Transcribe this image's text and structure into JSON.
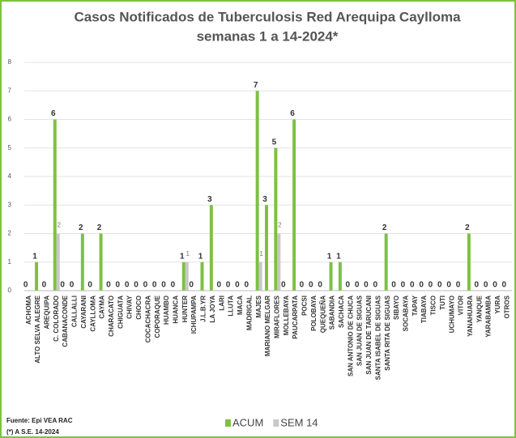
{
  "chart_data": {
    "type": "bar",
    "title": "Casos Notificados de Tuberculosis Red Arequipa Caylloma",
    "subtitle": "semanas 1 a 14-2024*",
    "categories": [
      "ACHOMA",
      "ALTO SELVA ALEGRE",
      "AREQUIPA",
      "C. COLORADO",
      "CABANACONDE",
      "CALLALLI",
      "CAYARANI",
      "CAYLLOMA",
      "CAYMA",
      "CHARACATO",
      "CHIGUATA",
      "CHIVAY",
      "CHOCO",
      "COCACHACRA",
      "COPORAQUE",
      "HUAMBO",
      "HUANCA",
      "HUNTER",
      "ICHUPAMPA",
      "J.L.B.YR",
      "LA JOYA",
      "LARI",
      "LLUTA",
      "MACA",
      "MADRIGAL",
      "MAJES",
      "MARIANO MELGAR",
      "MIRAFLORES",
      "MOLLEBAYA",
      "PAUCARPATA",
      "POCSI",
      "POLOBAYA",
      "QUEQUEÑA",
      "SABANDIA",
      "SACHACA",
      "SAN ANTONIO DE CHUCA",
      "SAN JUAN DE SIGUAS",
      "SAN JUAN DE TARUCANI",
      "SANTA ISABEL DE SIGUAS",
      "SANTA RITA DE SIGUAS",
      "SIBAYO",
      "SOCABAYA",
      "TAPAY",
      "TIABAYA",
      "TISCO",
      "TUTI",
      "UCHUMAYO",
      "VITOR",
      "YANAHUARA",
      "YANQUE",
      "YARABAMBA",
      "YURA",
      "OTROS"
    ],
    "series": [
      {
        "name": "ACUM",
        "color": "#7dc142",
        "values": [
          0,
          1,
          0,
          6,
          0,
          0,
          2,
          0,
          2,
          0,
          0,
          0,
          0,
          0,
          0,
          0,
          0,
          1,
          0,
          1,
          3,
          0,
          0,
          0,
          0,
          7,
          3,
          5,
          0,
          6,
          0,
          0,
          0,
          1,
          1,
          0,
          0,
          0,
          0,
          2,
          0,
          0,
          0,
          0,
          0,
          0,
          0,
          0,
          2,
          0,
          0,
          0,
          0
        ]
      },
      {
        "name": "SEM 14",
        "color": "#c8c8c8",
        "values": [
          0,
          0,
          0,
          2,
          0,
          0,
          0,
          0,
          0,
          0,
          0,
          0,
          0,
          0,
          0,
          0,
          0,
          1,
          0,
          0,
          0,
          0,
          0,
          0,
          0,
          1,
          0,
          2,
          0,
          0,
          0,
          0,
          0,
          0,
          0,
          0,
          0,
          0,
          0,
          0,
          0,
          0,
          0,
          0,
          0,
          0,
          0,
          0,
          0,
          0,
          0,
          0,
          0
        ]
      }
    ],
    "ylim": [
      0,
      8
    ],
    "yticks": [
      0,
      1,
      2,
      3,
      4,
      5,
      6,
      7,
      8
    ],
    "grid": true,
    "legend": "bottom",
    "notes": [
      "Fuente: Epi VEA RAC",
      "(*) A S.E. 14-2024"
    ]
  }
}
